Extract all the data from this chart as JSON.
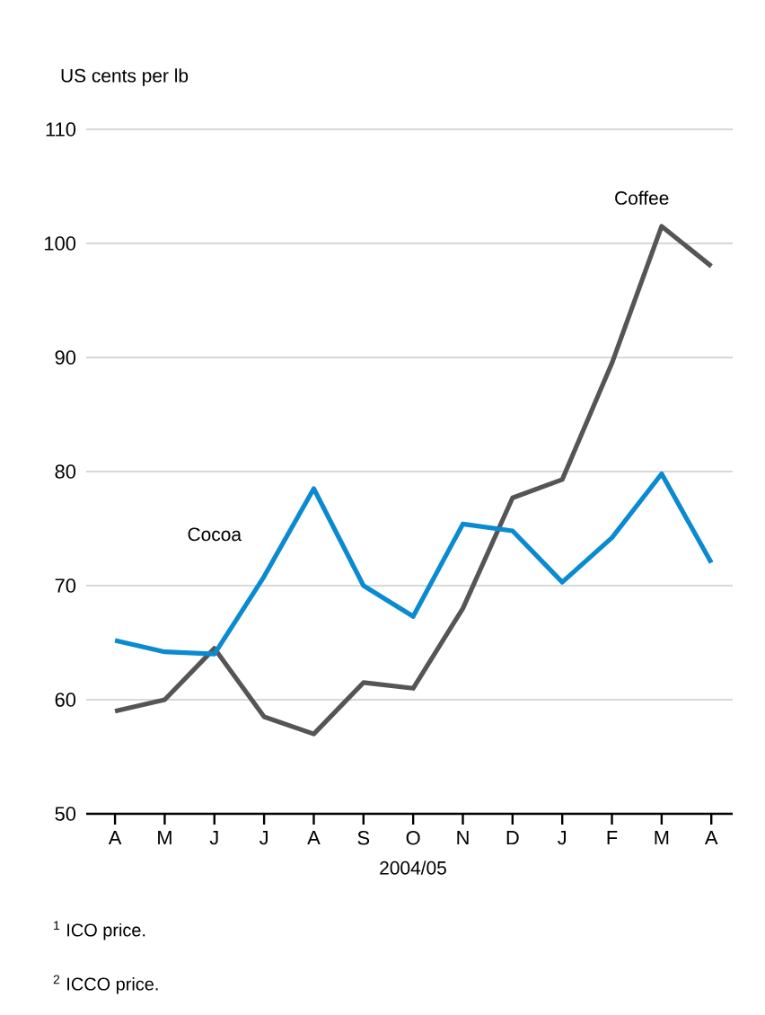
{
  "chart_data": {
    "type": "line",
    "ylabel": "US cents per lb",
    "xlabel": "2004/05",
    "categories": [
      "A",
      "M",
      "J",
      "J",
      "A",
      "S",
      "O",
      "N",
      "D",
      "J",
      "F",
      "M",
      "A"
    ],
    "series": [
      {
        "name": "Coffee",
        "color": "#555555",
        "values": [
          59,
          60,
          64.5,
          58.5,
          57,
          61.5,
          61,
          68,
          77.7,
          79.3,
          89.5,
          101.5,
          98
        ]
      },
      {
        "name": "Cocoa",
        "color": "#0a8ad0",
        "values": [
          65.2,
          64.2,
          64,
          70.8,
          78.5,
          70,
          67.3,
          75.4,
          74.8,
          70.3,
          74.2,
          79.8,
          72
        ]
      }
    ],
    "ylim": [
      50,
      110
    ],
    "yticks": [
      50,
      60,
      70,
      80,
      90,
      100,
      110
    ],
    "grid": "y",
    "marker": "none",
    "line_style": "solid",
    "annotations": [
      "$^{1}$ ICO price.",
      "$^{2}$ ICCO price."
    ]
  }
}
